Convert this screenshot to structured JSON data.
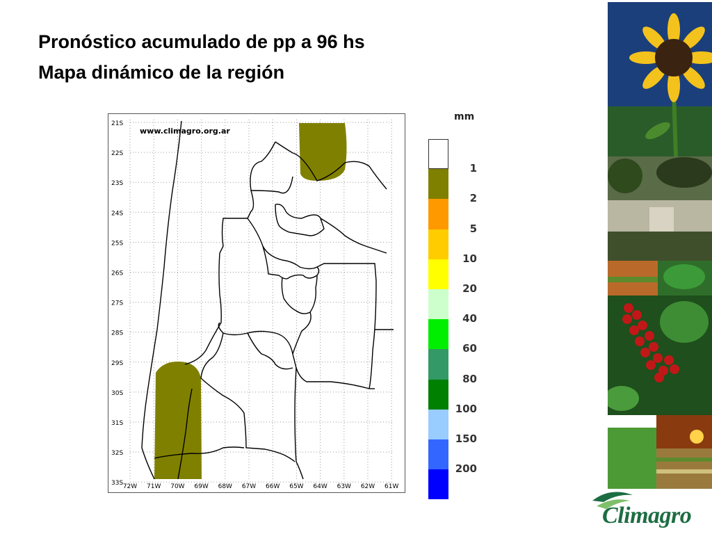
{
  "slide": {
    "title_line1": "Pronóstico acumulado de pp a 96 hs",
    "title_line2": "Mapa dinámico de la región"
  },
  "map": {
    "watermark": "www.climagro.org.ar",
    "lat_labels": [
      "21S",
      "22S",
      "23S",
      "24S",
      "25S",
      "26S",
      "27S",
      "28S",
      "29S",
      "30S",
      "31S",
      "32S",
      "33S"
    ],
    "lon_labels": [
      "72W",
      "71W",
      "70W",
      "69W",
      "68W",
      "67W",
      "66W",
      "65W",
      "64W",
      "63W",
      "62W",
      "61W"
    ],
    "precip_areas": [
      {
        "region": "north",
        "class_mm": "1-2"
      },
      {
        "region": "southwest",
        "class_mm": "1-2"
      }
    ]
  },
  "legend": {
    "unit": "mm",
    "classes": [
      {
        "color": "#ffffff",
        "label": "1"
      },
      {
        "color": "#808000",
        "label": "2"
      },
      {
        "color": "#ff9900",
        "label": "5"
      },
      {
        "color": "#ffcc00",
        "label": "10"
      },
      {
        "color": "#ffff00",
        "label": "20"
      },
      {
        "color": "#ccffcc",
        "label": "40"
      },
      {
        "color": "#00ee00",
        "label": "60"
      },
      {
        "color": "#339966",
        "label": "80"
      },
      {
        "color": "#008000",
        "label": "100"
      },
      {
        "color": "#99ccff",
        "label": "150"
      },
      {
        "color": "#3366ff",
        "label": "200"
      },
      {
        "color": "#0000ff",
        "label": ""
      }
    ]
  },
  "brand": {
    "logo_text": "Climagro",
    "logo_color": "#1d6d43"
  }
}
